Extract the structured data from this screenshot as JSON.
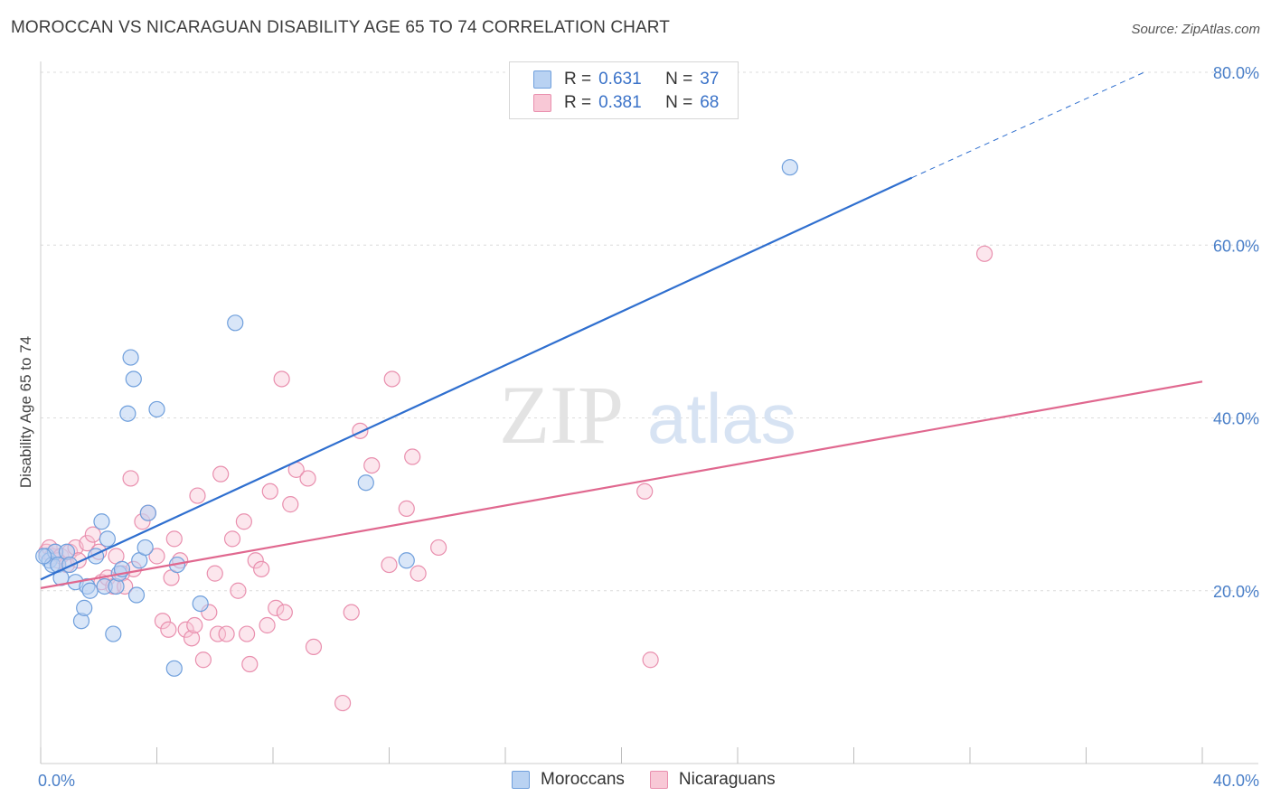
{
  "title": "MOROCCAN VS NICARAGUAN DISABILITY AGE 65 TO 74 CORRELATION CHART",
  "source": "Source: ZipAtlas.com",
  "watermark": {
    "zip": "ZIP",
    "atlas": "atlas"
  },
  "legend": {
    "rows": [
      {
        "r_label": "R =",
        "r_value": "0.631",
        "n_label": "N =",
        "n_value": "37"
      },
      {
        "r_label": "R =",
        "r_value": "0.381",
        "n_label": "N =",
        "n_value": "68"
      }
    ]
  },
  "bottom_legend": [
    "Moroccans",
    "Nicaraguans"
  ],
  "colors": {
    "moroccans_fill": "#b9d2f2",
    "moroccans_stroke": "#6f9fdc",
    "moroccans_line": "#2f6fcf",
    "nicaraguans_fill": "#f8c8d6",
    "nicaraguans_stroke": "#e98fae",
    "nicaraguans_line": "#e0688f",
    "axis_text": "#4a7fc8"
  },
  "chart_data": {
    "type": "scatter",
    "title": "MOROCCAN VS NICARAGUAN DISABILITY AGE 65 TO 74 CORRELATION CHART",
    "xlabel": "",
    "ylabel": "Disability Age 65 to 74",
    "xlim": [
      0,
      40
    ],
    "ylim": [
      0,
      80
    ],
    "x_tick_labels": [
      "0.0%",
      "40.0%"
    ],
    "y_tick_labels": [
      "20.0%",
      "40.0%",
      "60.0%",
      "80.0%"
    ],
    "y_ticks": [
      20,
      40,
      60,
      80
    ],
    "grid": true,
    "legend_position": "top-center",
    "series": [
      {
        "name": "Moroccans",
        "R": 0.631,
        "N": 37,
        "trend": {
          "x0": 0,
          "y0": 21.3,
          "x1": 30,
          "y1": 67.8,
          "dashed_to_x": 38.0,
          "dashed_to_y": 80.0
        },
        "points": [
          [
            0.2,
            24.0
          ],
          [
            0.3,
            23.5
          ],
          [
            0.4,
            23.0
          ],
          [
            0.5,
            24.5
          ],
          [
            0.6,
            23.0
          ],
          [
            0.7,
            21.5
          ],
          [
            0.9,
            24.5
          ],
          [
            1.0,
            23.0
          ],
          [
            1.2,
            21.0
          ],
          [
            1.4,
            16.5
          ],
          [
            1.5,
            18.0
          ],
          [
            1.6,
            20.5
          ],
          [
            1.7,
            20.0
          ],
          [
            1.9,
            24.0
          ],
          [
            2.1,
            28.0
          ],
          [
            2.3,
            26.0
          ],
          [
            2.2,
            20.5
          ],
          [
            2.5,
            15.0
          ],
          [
            2.6,
            20.5
          ],
          [
            2.7,
            22.0
          ],
          [
            2.8,
            22.5
          ],
          [
            3.0,
            40.5
          ],
          [
            3.1,
            47.0
          ],
          [
            3.2,
            44.5
          ],
          [
            3.3,
            19.5
          ],
          [
            3.4,
            23.5
          ],
          [
            3.6,
            25.0
          ],
          [
            3.7,
            29.0
          ],
          [
            4.0,
            41.0
          ],
          [
            4.7,
            23.0
          ],
          [
            4.6,
            11.0
          ],
          [
            5.5,
            18.5
          ],
          [
            6.7,
            51.0
          ],
          [
            11.2,
            32.5
          ],
          [
            12.6,
            23.5
          ],
          [
            25.8,
            69.0
          ],
          [
            0.1,
            24.0
          ]
        ]
      },
      {
        "name": "Nicaraguans",
        "R": 0.381,
        "N": 68,
        "trend": {
          "x0": 0,
          "y0": 20.3,
          "x1": 40,
          "y1": 44.2
        },
        "points": [
          [
            0.2,
            24.5
          ],
          [
            0.3,
            25.0
          ],
          [
            0.4,
            24.0
          ],
          [
            0.5,
            24.5
          ],
          [
            0.6,
            23.5
          ],
          [
            0.7,
            24.0
          ],
          [
            0.9,
            23.0
          ],
          [
            1.0,
            24.5
          ],
          [
            1.2,
            25.0
          ],
          [
            1.3,
            23.5
          ],
          [
            1.6,
            25.5
          ],
          [
            1.8,
            26.5
          ],
          [
            2.0,
            24.5
          ],
          [
            2.1,
            21.0
          ],
          [
            2.3,
            21.5
          ],
          [
            2.5,
            20.5
          ],
          [
            2.6,
            24.0
          ],
          [
            2.8,
            22.0
          ],
          [
            2.9,
            20.5
          ],
          [
            3.1,
            33.0
          ],
          [
            3.2,
            22.5
          ],
          [
            3.5,
            28.0
          ],
          [
            3.7,
            29.0
          ],
          [
            4.0,
            24.0
          ],
          [
            4.2,
            16.5
          ],
          [
            4.4,
            15.5
          ],
          [
            4.5,
            21.5
          ],
          [
            4.6,
            26.0
          ],
          [
            4.8,
            23.5
          ],
          [
            5.0,
            15.5
          ],
          [
            5.2,
            14.5
          ],
          [
            5.3,
            16.0
          ],
          [
            5.4,
            31.0
          ],
          [
            5.6,
            12.0
          ],
          [
            5.8,
            17.5
          ],
          [
            6.0,
            22.0
          ],
          [
            6.1,
            15.0
          ],
          [
            6.2,
            33.5
          ],
          [
            6.4,
            15.0
          ],
          [
            6.6,
            26.0
          ],
          [
            6.8,
            20.0
          ],
          [
            7.0,
            28.0
          ],
          [
            7.1,
            15.0
          ],
          [
            7.2,
            11.5
          ],
          [
            7.4,
            23.5
          ],
          [
            7.6,
            22.5
          ],
          [
            7.8,
            16.0
          ],
          [
            7.9,
            31.5
          ],
          [
            8.1,
            18.0
          ],
          [
            8.3,
            44.5
          ],
          [
            8.4,
            17.5
          ],
          [
            8.6,
            30.0
          ],
          [
            8.8,
            34.0
          ],
          [
            9.2,
            33.0
          ],
          [
            9.4,
            13.5
          ],
          [
            10.4,
            7.0
          ],
          [
            10.7,
            17.5
          ],
          [
            11.0,
            38.5
          ],
          [
            11.4,
            34.5
          ],
          [
            12.0,
            23.0
          ],
          [
            12.1,
            44.5
          ],
          [
            12.6,
            29.5
          ],
          [
            12.8,
            35.5
          ],
          [
            13.0,
            22.0
          ],
          [
            13.7,
            25.0
          ],
          [
            20.8,
            31.5
          ],
          [
            21.0,
            12.0
          ],
          [
            32.5,
            59.0
          ]
        ]
      }
    ]
  }
}
